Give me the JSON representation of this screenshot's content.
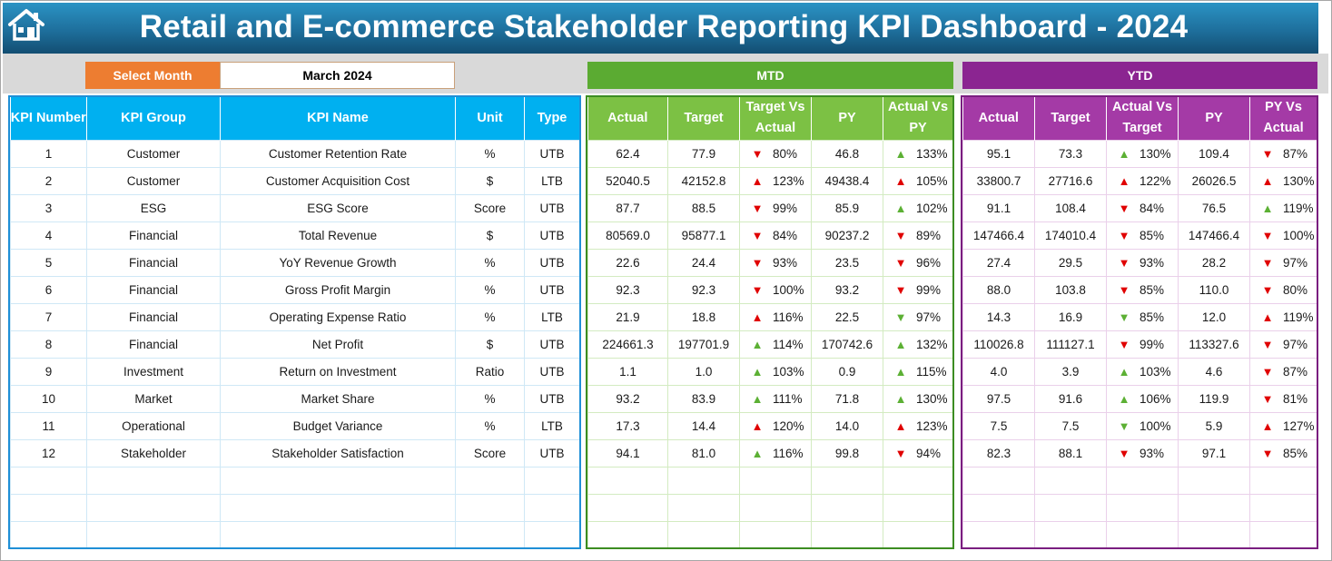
{
  "header": {
    "title": "Retail and E-commerce Stakeholder Reporting KPI Dashboard - 2024",
    "home_icon": "home-icon"
  },
  "selector": {
    "label": "Select Month",
    "value": "March 2024"
  },
  "sections": {
    "mtd": "MTD",
    "ytd": "YTD"
  },
  "colors": {
    "header": "#1e6f9c",
    "select": "#ed7d31",
    "mtd": "#5bab32",
    "ytd": "#8b2591",
    "up_arrow": "#5cb034",
    "down_arrow": "#e00000"
  },
  "left_headers": [
    "KPI Number",
    "KPI Group",
    "KPI Name",
    "Unit",
    "Type"
  ],
  "mtd_headers": [
    "Actual",
    "Target",
    "Target Vs Actual",
    "PY",
    "Actual Vs PY"
  ],
  "ytd_headers": [
    "Actual",
    "Target",
    "Actual Vs Target",
    "PY",
    "PY Vs Actual"
  ],
  "arrow_glyphs": {
    "up": "▲",
    "down": "▼"
  },
  "rows": [
    {
      "num": "1",
      "group": "Customer",
      "name": "Customer Retention Rate",
      "unit": "%",
      "type": "UTB",
      "mtd": {
        "actual": "62.4",
        "target": "77.9",
        "tva": "80%",
        "tva_dir": "down",
        "tva_color": "down",
        "py": "46.8",
        "avp": "133%",
        "avp_dir": "up",
        "avp_color": "up"
      },
      "ytd": {
        "actual": "95.1",
        "target": "73.3",
        "avt": "130%",
        "avt_dir": "up",
        "avt_color": "up",
        "py": "109.4",
        "pva": "87%",
        "pva_dir": "down",
        "pva_color": "down"
      }
    },
    {
      "num": "2",
      "group": "Customer",
      "name": "Customer Acquisition Cost",
      "unit": "$",
      "type": "LTB",
      "mtd": {
        "actual": "52040.5",
        "target": "42152.8",
        "tva": "123%",
        "tva_dir": "up",
        "tva_color": "down",
        "py": "49438.4",
        "avp": "105%",
        "avp_dir": "up",
        "avp_color": "down"
      },
      "ytd": {
        "actual": "33800.7",
        "target": "27716.6",
        "avt": "122%",
        "avt_dir": "up",
        "avt_color": "down",
        "py": "26026.5",
        "pva": "130%",
        "pva_dir": "up",
        "pva_color": "down"
      }
    },
    {
      "num": "3",
      "group": "ESG",
      "name": "ESG Score",
      "unit": "Score",
      "type": "UTB",
      "mtd": {
        "actual": "87.7",
        "target": "88.5",
        "tva": "99%",
        "tva_dir": "down",
        "tva_color": "down",
        "py": "85.9",
        "avp": "102%",
        "avp_dir": "up",
        "avp_color": "up"
      },
      "ytd": {
        "actual": "91.1",
        "target": "108.4",
        "avt": "84%",
        "avt_dir": "down",
        "avt_color": "down",
        "py": "76.5",
        "pva": "119%",
        "pva_dir": "up",
        "pva_color": "up"
      }
    },
    {
      "num": "4",
      "group": "Financial",
      "name": "Total Revenue",
      "unit": "$",
      "type": "UTB",
      "mtd": {
        "actual": "80569.0",
        "target": "95877.1",
        "tva": "84%",
        "tva_dir": "down",
        "tva_color": "down",
        "py": "90237.2",
        "avp": "89%",
        "avp_dir": "down",
        "avp_color": "down"
      },
      "ytd": {
        "actual": "147466.4",
        "target": "174010.4",
        "avt": "85%",
        "avt_dir": "down",
        "avt_color": "down",
        "py": "147466.4",
        "pva": "100%",
        "pva_dir": "down",
        "pva_color": "down"
      }
    },
    {
      "num": "5",
      "group": "Financial",
      "name": "YoY Revenue Growth",
      "unit": "%",
      "type": "UTB",
      "mtd": {
        "actual": "22.6",
        "target": "24.4",
        "tva": "93%",
        "tva_dir": "down",
        "tva_color": "down",
        "py": "23.5",
        "avp": "96%",
        "avp_dir": "down",
        "avp_color": "down"
      },
      "ytd": {
        "actual": "27.4",
        "target": "29.5",
        "avt": "93%",
        "avt_dir": "down",
        "avt_color": "down",
        "py": "28.2",
        "pva": "97%",
        "pva_dir": "down",
        "pva_color": "down"
      }
    },
    {
      "num": "6",
      "group": "Financial",
      "name": "Gross Profit Margin",
      "unit": "%",
      "type": "UTB",
      "mtd": {
        "actual": "92.3",
        "target": "92.3",
        "tva": "100%",
        "tva_dir": "down",
        "tva_color": "down",
        "py": "93.2",
        "avp": "99%",
        "avp_dir": "down",
        "avp_color": "down"
      },
      "ytd": {
        "actual": "88.0",
        "target": "103.8",
        "avt": "85%",
        "avt_dir": "down",
        "avt_color": "down",
        "py": "110.0",
        "pva": "80%",
        "pva_dir": "down",
        "pva_color": "down"
      }
    },
    {
      "num": "7",
      "group": "Financial",
      "name": "Operating Expense Ratio",
      "unit": "%",
      "type": "LTB",
      "mtd": {
        "actual": "21.9",
        "target": "18.8",
        "tva": "116%",
        "tva_dir": "up",
        "tva_color": "down",
        "py": "22.5",
        "avp": "97%",
        "avp_dir": "down",
        "avp_color": "up"
      },
      "ytd": {
        "actual": "14.3",
        "target": "16.9",
        "avt": "85%",
        "avt_dir": "down",
        "avt_color": "up",
        "py": "12.0",
        "pva": "119%",
        "pva_dir": "up",
        "pva_color": "down"
      }
    },
    {
      "num": "8",
      "group": "Financial",
      "name": "Net Profit",
      "unit": "$",
      "type": "UTB",
      "mtd": {
        "actual": "224661.3",
        "target": "197701.9",
        "tva": "114%",
        "tva_dir": "up",
        "tva_color": "up",
        "py": "170742.6",
        "avp": "132%",
        "avp_dir": "up",
        "avp_color": "up"
      },
      "ytd": {
        "actual": "110026.8",
        "target": "111127.1",
        "avt": "99%",
        "avt_dir": "down",
        "avt_color": "down",
        "py": "113327.6",
        "pva": "97%",
        "pva_dir": "down",
        "pva_color": "down"
      }
    },
    {
      "num": "9",
      "group": "Investment",
      "name": "Return on Investment",
      "unit": "Ratio",
      "type": "UTB",
      "mtd": {
        "actual": "1.1",
        "target": "1.0",
        "tva": "103%",
        "tva_dir": "up",
        "tva_color": "up",
        "py": "0.9",
        "avp": "115%",
        "avp_dir": "up",
        "avp_color": "up"
      },
      "ytd": {
        "actual": "4.0",
        "target": "3.9",
        "avt": "103%",
        "avt_dir": "up",
        "avt_color": "up",
        "py": "4.6",
        "pva": "87%",
        "pva_dir": "down",
        "pva_color": "down"
      }
    },
    {
      "num": "10",
      "group": "Market",
      "name": "Market Share",
      "unit": "%",
      "type": "UTB",
      "mtd": {
        "actual": "93.2",
        "target": "83.9",
        "tva": "111%",
        "tva_dir": "up",
        "tva_color": "up",
        "py": "71.8",
        "avp": "130%",
        "avp_dir": "up",
        "avp_color": "up"
      },
      "ytd": {
        "actual": "97.5",
        "target": "91.6",
        "avt": "106%",
        "avt_dir": "up",
        "avt_color": "up",
        "py": "119.9",
        "pva": "81%",
        "pva_dir": "down",
        "pva_color": "down"
      }
    },
    {
      "num": "11",
      "group": "Operational",
      "name": "Budget Variance",
      "unit": "%",
      "type": "LTB",
      "mtd": {
        "actual": "17.3",
        "target": "14.4",
        "tva": "120%",
        "tva_dir": "up",
        "tva_color": "down",
        "py": "14.0",
        "avp": "123%",
        "avp_dir": "up",
        "avp_color": "down"
      },
      "ytd": {
        "actual": "7.5",
        "target": "7.5",
        "avt": "100%",
        "avt_dir": "down",
        "avt_color": "up",
        "py": "5.9",
        "pva": "127%",
        "pva_dir": "up",
        "pva_color": "down"
      }
    },
    {
      "num": "12",
      "group": "Stakeholder",
      "name": "Stakeholder Satisfaction",
      "unit": "Score",
      "type": "UTB",
      "mtd": {
        "actual": "94.1",
        "target": "81.0",
        "tva": "116%",
        "tva_dir": "up",
        "tva_color": "up",
        "py": "99.8",
        "avp": "94%",
        "avp_dir": "down",
        "avp_color": "down"
      },
      "ytd": {
        "actual": "82.3",
        "target": "88.1",
        "avt": "93%",
        "avt_dir": "down",
        "avt_color": "down",
        "py": "97.1",
        "pva": "85%",
        "pva_dir": "down",
        "pva_color": "down"
      }
    }
  ]
}
